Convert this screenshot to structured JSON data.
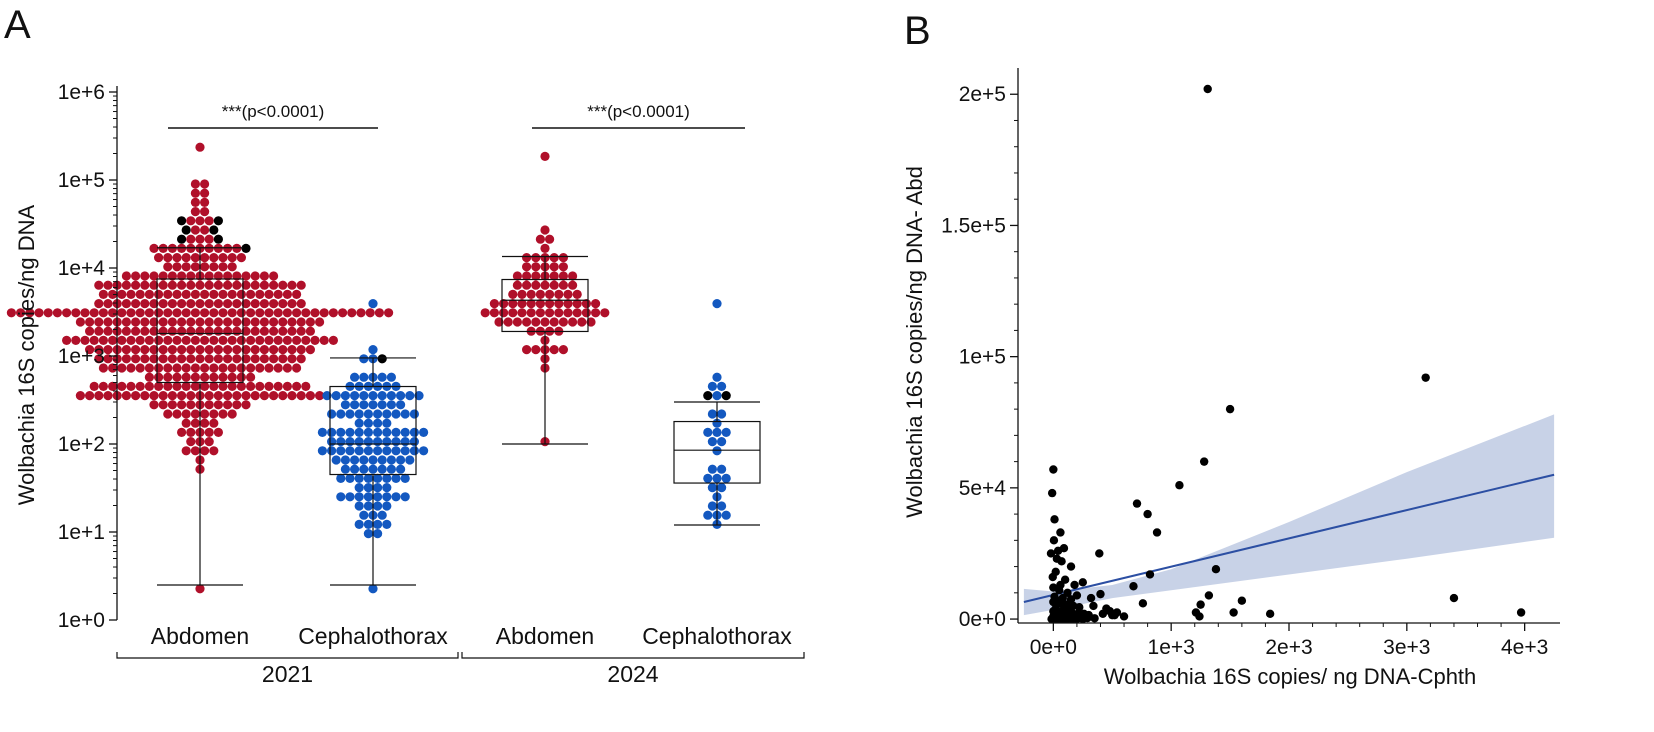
{
  "panels": {
    "a_letter": "A",
    "b_letter": "B"
  },
  "colors": {
    "abdomen": "#b0102a",
    "cephalothorax": "#1358c0",
    "outlier": "#000000",
    "fit_line": "#2c4fa3",
    "fit_band": "#c5d0e6",
    "scatter_point": "#000000"
  },
  "chart_data": [
    {
      "id": "A",
      "type": "box",
      "overlay": "beeswarm dot plot",
      "y_scale": "log10",
      "ylabel": "Wolbachia 16S copies/ng DNA",
      "ylim": [
        1,
        1000000
      ],
      "y_ticks": [
        "1e+0",
        "1e+1",
        "1e+2",
        "1e+3",
        "1e+4",
        "1e+5",
        "1e+6"
      ],
      "groups": [
        {
          "group": "2021",
          "category": "Abdomen",
          "color": "abdomen",
          "min": 2.5,
          "q1": 500,
          "median": 1800,
          "q3": 7500,
          "max": 17000,
          "approx_n": 430,
          "points_min": 2.5,
          "points_max": 210000
        },
        {
          "group": "2021",
          "category": "Cephalothorax",
          "color": "cephalothorax",
          "min": 2.5,
          "q1": 45,
          "median": 100,
          "q3": 450,
          "max": 950,
          "approx_n": 130,
          "points_min": 2.5,
          "points_max": 4200
        },
        {
          "group": "2024",
          "category": "Abdomen",
          "color": "abdomen",
          "min": 100,
          "q1": 1900,
          "median": 4300,
          "q3": 7400,
          "max": 13500,
          "approx_n": 85,
          "points_min": 100,
          "points_max": 180000
        },
        {
          "group": "2024",
          "category": "Cephalothorax",
          "color": "cephalothorax",
          "min": 12,
          "q1": 36,
          "median": 85,
          "q3": 180,
          "max": 300,
          "approx_n": 28,
          "points_min": 12,
          "points_max": 3500
        }
      ],
      "x_categories": [
        "Abdomen",
        "Cephalothorax",
        "Abdomen",
        "Cephalothorax"
      ],
      "x_groups": [
        "2021",
        "2024"
      ],
      "annotations": [
        {
          "text": "***(p<0.0001)",
          "between": [
            "2021 Abdomen",
            "2021 Cephalothorax"
          ]
        },
        {
          "text": "***(p<0.0001)",
          "between": [
            "2024 Abdomen",
            "2024 Cephalothorax"
          ]
        }
      ]
    },
    {
      "id": "B",
      "type": "scatter",
      "xlabel": "Wolbachia 16S copies/ ng DNA-Cphth",
      "ylabel": "Wolbachia 16S copies/ng DNA- Abd",
      "xlim": [
        -300,
        4300
      ],
      "ylim": [
        -1500,
        210000
      ],
      "x_ticks": [
        {
          "value": 0,
          "label": "0e+0"
        },
        {
          "value": 1000,
          "label": "1e+3"
        },
        {
          "value": 2000,
          "label": "2e+3"
        },
        {
          "value": 3000,
          "label": "3e+3"
        },
        {
          "value": 4000,
          "label": "4e+3"
        }
      ],
      "y_ticks": [
        {
          "value": 0,
          "label": "0e+0"
        },
        {
          "value": 50000,
          "label": "5e+4"
        },
        {
          "value": 100000,
          "label": "1e+5"
        },
        {
          "value": 150000,
          "label": "1.5e+5"
        },
        {
          "value": 200000,
          "label": "2e+5"
        }
      ],
      "fit": {
        "type": "linear regression with confidence band",
        "line": [
          [
            -250,
            6500
          ],
          [
            4250,
            55000
          ]
        ],
        "band_lower": [
          [
            -250,
            1500
          ],
          [
            0,
            3500
          ],
          [
            500,
            8000
          ],
          [
            1000,
            11000
          ],
          [
            2000,
            17000
          ],
          [
            3000,
            23000
          ],
          [
            4250,
            31000
          ]
        ],
        "band_upper": [
          [
            -250,
            11500
          ],
          [
            0,
            10500
          ],
          [
            500,
            13000
          ],
          [
            1000,
            19000
          ],
          [
            2000,
            37000
          ],
          [
            3000,
            56000
          ],
          [
            4250,
            78000
          ]
        ]
      },
      "points": [
        [
          0,
          57000
        ],
        [
          -10,
          48000
        ],
        [
          10,
          38000
        ],
        [
          60,
          33000
        ],
        [
          5,
          30000
        ],
        [
          40,
          26000
        ],
        [
          -20,
          25000
        ],
        [
          90,
          27000
        ],
        [
          30,
          23000
        ],
        [
          70,
          22000
        ],
        [
          150,
          20000
        ],
        [
          20,
          18000
        ],
        [
          -5,
          16000
        ],
        [
          100,
          15000
        ],
        [
          60,
          13000
        ],
        [
          180,
          13000
        ],
        [
          0,
          12000
        ],
        [
          50,
          11000
        ],
        [
          120,
          10000
        ],
        [
          200,
          9000
        ],
        [
          10,
          8500
        ],
        [
          80,
          8000
        ],
        [
          150,
          7500
        ],
        [
          30,
          7000
        ],
        [
          0,
          6500
        ],
        [
          60,
          6000
        ],
        [
          110,
          5500
        ],
        [
          170,
          5000
        ],
        [
          220,
          4500
        ],
        [
          20,
          4000
        ],
        [
          90,
          3800
        ],
        [
          140,
          3500
        ],
        [
          0,
          3000
        ],
        [
          50,
          2800
        ],
        [
          100,
          2500
        ],
        [
          160,
          2300
        ],
        [
          210,
          2100
        ],
        [
          260,
          2000
        ],
        [
          10,
          1800
        ],
        [
          70,
          1700
        ],
        [
          120,
          1500
        ],
        [
          180,
          1400
        ],
        [
          240,
          1200
        ],
        [
          300,
          1100
        ],
        [
          0,
          1000
        ],
        [
          40,
          900
        ],
        [
          90,
          800
        ],
        [
          140,
          700
        ],
        [
          190,
          600
        ],
        [
          240,
          500
        ],
        [
          290,
          400
        ],
        [
          350,
          300
        ],
        [
          0,
          200
        ],
        [
          30,
          150
        ],
        [
          60,
          100
        ],
        [
          100,
          50
        ],
        [
          -15,
          0
        ],
        [
          20,
          0
        ],
        [
          50,
          0
        ],
        [
          80,
          0
        ],
        [
          120,
          0
        ],
        [
          160,
          0
        ],
        [
          200,
          0
        ],
        [
          250,
          0
        ],
        [
          300,
          1500
        ],
        [
          340,
          5000
        ],
        [
          390,
          25000
        ],
        [
          420,
          2000
        ],
        [
          450,
          4000
        ],
        [
          480,
          3000
        ],
        [
          500,
          1500
        ],
        [
          540,
          2500
        ],
        [
          250,
          14000
        ],
        [
          320,
          8000
        ],
        [
          400,
          9500
        ],
        [
          520,
          1500
        ],
        [
          600,
          1000
        ],
        [
          680,
          12500
        ],
        [
          710,
          44000
        ],
        [
          760,
          6000
        ],
        [
          800,
          40000
        ],
        [
          820,
          17000
        ],
        [
          880,
          33000
        ],
        [
          1070,
          51000
        ],
        [
          1210,
          2500
        ],
        [
          1240,
          1000
        ],
        [
          1250,
          5500
        ],
        [
          1280,
          60000
        ],
        [
          1320,
          9000
        ],
        [
          1380,
          19000
        ],
        [
          1500,
          80000
        ],
        [
          1530,
          2500
        ],
        [
          1600,
          7000
        ],
        [
          1840,
          2000
        ],
        [
          1310,
          202000
        ],
        [
          3160,
          92000
        ],
        [
          3400,
          8000
        ],
        [
          3970,
          2500
        ]
      ]
    }
  ]
}
